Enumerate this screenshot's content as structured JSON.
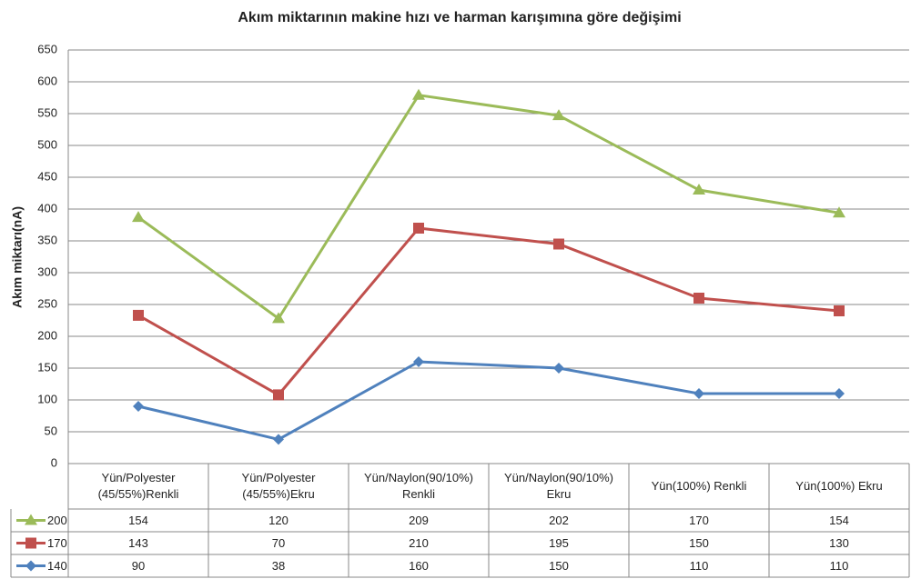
{
  "chart_data": {
    "type": "stacked_line",
    "title": "Akım miktarının makine hızı ve harman karışımına göre değişimi",
    "y_label": "Akım miktarı(nA)",
    "categories": [
      "Yün/Polyester (45/55%)Renkli",
      "Yün/Polyester (45/55%)Ekru",
      "Yün/Naylon(90/10%) Renkli",
      "Yün/Naylon(90/10%) Ekru",
      "Yün(100%) Renkli",
      "Yün(100%) Ekru"
    ],
    "series": [
      {
        "name": "200",
        "color": "#9bbb59",
        "marker": "triangle",
        "values": [
          154,
          120,
          209,
          202,
          170,
          154
        ]
      },
      {
        "name": "170",
        "color": "#c0504d",
        "marker": "square",
        "values": [
          143,
          70,
          210,
          195,
          150,
          130
        ]
      },
      {
        "name": "140",
        "color": "#4f81bd",
        "marker": "diamond",
        "values": [
          90,
          38,
          160,
          150,
          110,
          110
        ]
      }
    ],
    "ylim": [
      0,
      650
    ],
    "yticks": [
      0,
      50,
      100,
      150,
      200,
      250,
      300,
      350,
      400,
      450,
      500,
      550,
      600,
      650
    ],
    "grid": true,
    "data_table": true
  }
}
